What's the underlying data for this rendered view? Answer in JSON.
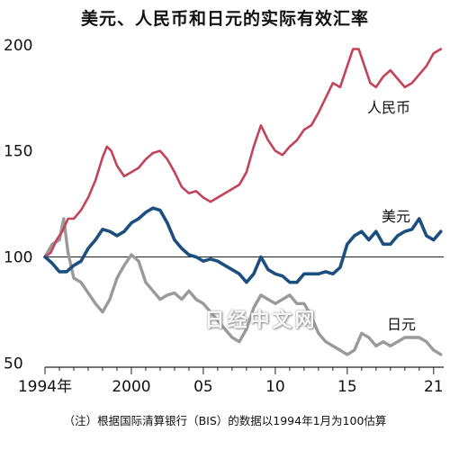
{
  "chart_data": {
    "type": "line",
    "title": "美元、人民币和日元的实际有效汇率",
    "footnote": "（注）根据国际清算银行（BIS）的数据以1994年1月为100估算",
    "watermark": "日经中文网",
    "x_tick_labels": [
      "1994年",
      "2000",
      "05",
      "10",
      "15",
      "21"
    ],
    "x_tick_values": [
      1994,
      2000,
      2005,
      2010,
      2015,
      2021
    ],
    "y_tick_labels": [
      "200",
      "150",
      "100",
      "50"
    ],
    "y_tick_values": [
      200,
      150,
      100,
      50
    ],
    "xlim": [
      1994,
      2021.7
    ],
    "ylim": [
      48,
      205
    ],
    "reference_line": 100,
    "grid": false,
    "series": [
      {
        "name": "人民币",
        "color": "#c2435a",
        "points": [
          [
            1994.0,
            100
          ],
          [
            1994.4,
            102
          ],
          [
            1994.8,
            108
          ],
          [
            1995.2,
            112
          ],
          [
            1995.6,
            118
          ],
          [
            1996.0,
            118
          ],
          [
            1996.5,
            122
          ],
          [
            1997.0,
            128
          ],
          [
            1997.5,
            136
          ],
          [
            1998.0,
            147
          ],
          [
            1998.3,
            152
          ],
          [
            1998.6,
            150
          ],
          [
            1999.0,
            143
          ],
          [
            1999.5,
            138
          ],
          [
            2000.0,
            140
          ],
          [
            2000.5,
            142
          ],
          [
            2001.0,
            146
          ],
          [
            2001.5,
            149
          ],
          [
            2002.0,
            150
          ],
          [
            2002.5,
            146
          ],
          [
            2003.0,
            140
          ],
          [
            2003.5,
            133
          ],
          [
            2004.0,
            130
          ],
          [
            2004.5,
            131
          ],
          [
            2005.0,
            128
          ],
          [
            2005.5,
            126
          ],
          [
            2006.0,
            128
          ],
          [
            2006.5,
            130
          ],
          [
            2007.0,
            132
          ],
          [
            2007.5,
            134
          ],
          [
            2008.0,
            140
          ],
          [
            2008.5,
            152
          ],
          [
            2009.0,
            162
          ],
          [
            2009.5,
            155
          ],
          [
            2010.0,
            150
          ],
          [
            2010.5,
            148
          ],
          [
            2011.0,
            152
          ],
          [
            2011.5,
            155
          ],
          [
            2012.0,
            160
          ],
          [
            2012.5,
            162
          ],
          [
            2013.0,
            168
          ],
          [
            2013.5,
            175
          ],
          [
            2014.0,
            182
          ],
          [
            2014.5,
            180
          ],
          [
            2015.0,
            190
          ],
          [
            2015.4,
            198
          ],
          [
            2015.8,
            198
          ],
          [
            2016.2,
            190
          ],
          [
            2016.6,
            182
          ],
          [
            2017.0,
            180
          ],
          [
            2017.5,
            185
          ],
          [
            2018.0,
            188
          ],
          [
            2018.5,
            184
          ],
          [
            2019.0,
            180
          ],
          [
            2019.5,
            182
          ],
          [
            2020.0,
            186
          ],
          [
            2020.5,
            190
          ],
          [
            2021.0,
            196
          ],
          [
            2021.5,
            198
          ]
        ]
      },
      {
        "name": "美元",
        "color": "#1d4f7e",
        "points": [
          [
            1994.0,
            100
          ],
          [
            1994.5,
            97
          ],
          [
            1995.0,
            93
          ],
          [
            1995.5,
            93
          ],
          [
            1996.0,
            96
          ],
          [
            1996.5,
            98
          ],
          [
            1997.0,
            104
          ],
          [
            1997.5,
            108
          ],
          [
            1998.0,
            113
          ],
          [
            1998.5,
            112
          ],
          [
            1999.0,
            110
          ],
          [
            1999.5,
            112
          ],
          [
            2000.0,
            116
          ],
          [
            2000.5,
            118
          ],
          [
            2001.0,
            121
          ],
          [
            2001.5,
            123
          ],
          [
            2002.0,
            122
          ],
          [
            2002.5,
            116
          ],
          [
            2003.0,
            108
          ],
          [
            2003.5,
            104
          ],
          [
            2004.0,
            101
          ],
          [
            2004.5,
            100
          ],
          [
            2005.0,
            98
          ],
          [
            2005.5,
            99
          ],
          [
            2006.0,
            98
          ],
          [
            2006.5,
            96
          ],
          [
            2007.0,
            94
          ],
          [
            2007.5,
            92
          ],
          [
            2008.0,
            88
          ],
          [
            2008.5,
            92
          ],
          [
            2009.0,
            100
          ],
          [
            2009.5,
            94
          ],
          [
            2010.0,
            92
          ],
          [
            2010.5,
            91
          ],
          [
            2011.0,
            88
          ],
          [
            2011.5,
            88
          ],
          [
            2012.0,
            92
          ],
          [
            2012.5,
            92
          ],
          [
            2013.0,
            92
          ],
          [
            2013.5,
            93
          ],
          [
            2014.0,
            92
          ],
          [
            2014.5,
            95
          ],
          [
            2015.0,
            106
          ],
          [
            2015.5,
            110
          ],
          [
            2016.0,
            112
          ],
          [
            2016.5,
            108
          ],
          [
            2017.0,
            112
          ],
          [
            2017.5,
            106
          ],
          [
            2018.0,
            106
          ],
          [
            2018.5,
            110
          ],
          [
            2019.0,
            112
          ],
          [
            2019.5,
            113
          ],
          [
            2020.0,
            118
          ],
          [
            2020.5,
            110
          ],
          [
            2021.0,
            108
          ],
          [
            2021.5,
            112
          ]
        ]
      },
      {
        "name": "日元",
        "color": "#9a9a9a",
        "points": [
          [
            1994.0,
            100
          ],
          [
            1994.5,
            106
          ],
          [
            1995.0,
            108
          ],
          [
            1995.3,
            118
          ],
          [
            1995.6,
            102
          ],
          [
            1996.0,
            90
          ],
          [
            1996.5,
            88
          ],
          [
            1997.0,
            83
          ],
          [
            1997.5,
            78
          ],
          [
            1998.0,
            74
          ],
          [
            1998.5,
            80
          ],
          [
            1999.0,
            90
          ],
          [
            1999.5,
            96
          ],
          [
            2000.0,
            101
          ],
          [
            2000.5,
            98
          ],
          [
            2001.0,
            88
          ],
          [
            2001.5,
            84
          ],
          [
            2002.0,
            80
          ],
          [
            2002.5,
            82
          ],
          [
            2003.0,
            83
          ],
          [
            2003.5,
            80
          ],
          [
            2004.0,
            84
          ],
          [
            2004.5,
            80
          ],
          [
            2005.0,
            78
          ],
          [
            2005.5,
            74
          ],
          [
            2006.0,
            70
          ],
          [
            2006.5,
            66
          ],
          [
            2007.0,
            62
          ],
          [
            2007.5,
            60
          ],
          [
            2008.0,
            66
          ],
          [
            2008.5,
            76
          ],
          [
            2009.0,
            82
          ],
          [
            2009.5,
            80
          ],
          [
            2010.0,
            78
          ],
          [
            2010.5,
            80
          ],
          [
            2011.0,
            82
          ],
          [
            2011.5,
            78
          ],
          [
            2012.0,
            78
          ],
          [
            2012.5,
            72
          ],
          [
            2013.0,
            64
          ],
          [
            2013.5,
            60
          ],
          [
            2014.0,
            58
          ],
          [
            2014.5,
            56
          ],
          [
            2015.0,
            54
          ],
          [
            2015.5,
            56
          ],
          [
            2016.0,
            64
          ],
          [
            2016.5,
            62
          ],
          [
            2017.0,
            58
          ],
          [
            2017.5,
            60
          ],
          [
            2018.0,
            58
          ],
          [
            2018.5,
            60
          ],
          [
            2019.0,
            62
          ],
          [
            2019.5,
            62
          ],
          [
            2020.0,
            62
          ],
          [
            2020.5,
            60
          ],
          [
            2021.0,
            56
          ],
          [
            2021.5,
            54
          ]
        ]
      }
    ]
  }
}
